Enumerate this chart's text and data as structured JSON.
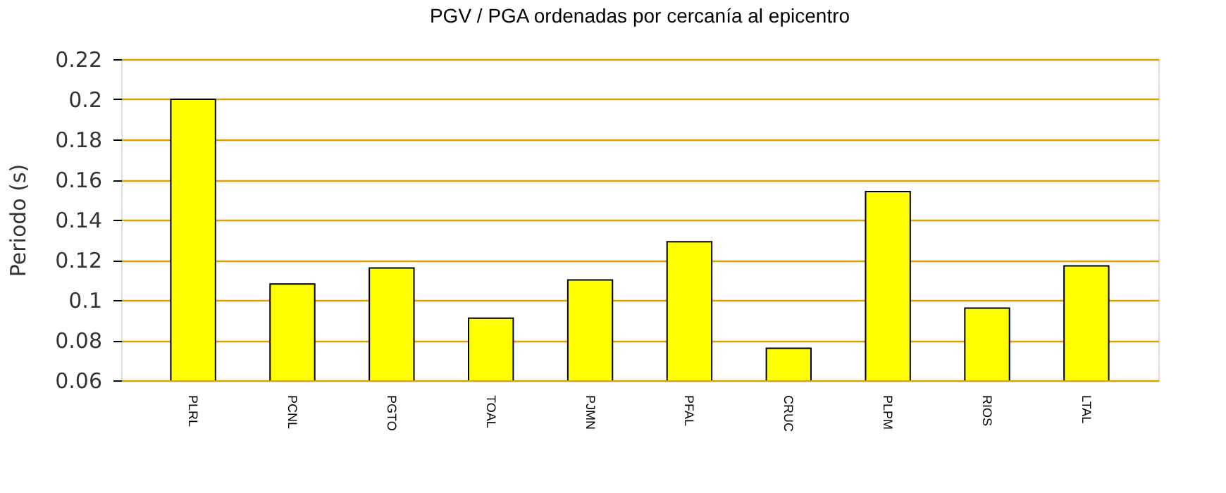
{
  "chart_data": {
    "type": "bar",
    "title": "PGV / PGA ordenadas por cercanía al epicentro",
    "ylabel": "Periodo (s)",
    "categories": [
      "PLRL",
      "PCNL",
      "PGTO",
      "TOAL",
      "PJMN",
      "PFAL",
      "CRUC",
      "PLPM",
      "RIOS",
      "LTAL"
    ],
    "values": [
      0.2,
      0.108,
      0.116,
      0.091,
      0.11,
      0.129,
      0.076,
      0.154,
      0.096,
      0.117
    ],
    "color": "#ffff00",
    "ylim": [
      0.06,
      0.22
    ],
    "yticks": [
      0.06,
      0.08,
      0.1,
      0.12,
      0.14,
      0.16,
      0.18,
      0.2,
      0.22
    ],
    "grid": true
  }
}
